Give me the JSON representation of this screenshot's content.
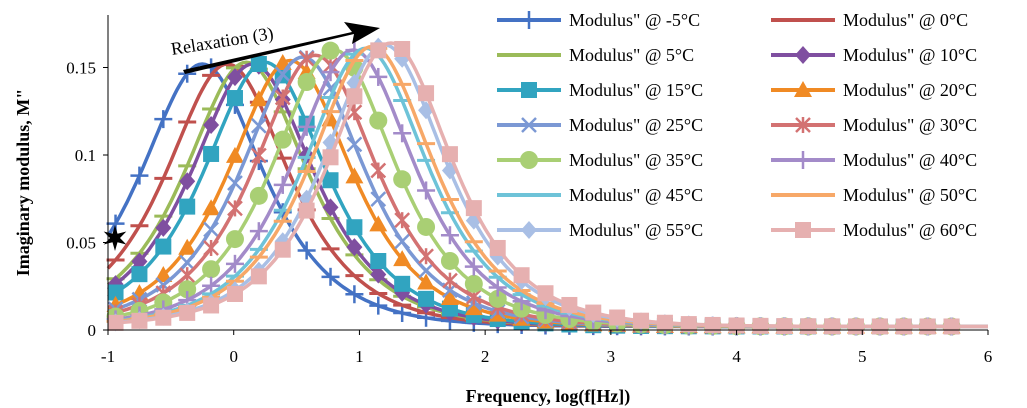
{
  "chart_data": {
    "type": "line",
    "title": "",
    "xlabel": "Frequency, log(f[Hz])",
    "ylabel": "Imaginary modulus, M\"",
    "xlim": [
      -1,
      6
    ],
    "ylim": [
      0,
      0.18
    ],
    "x_ticks": [
      "-1",
      "0",
      "1",
      "2",
      "3",
      "4",
      "5",
      "6"
    ],
    "y_ticks": [
      "0",
      "0.05",
      "0.1",
      "0.15"
    ],
    "grid": false,
    "legend_position": "right",
    "annotation": "Relaxation (3)",
    "series": [
      {
        "name": "Modulus\" @ -5°C",
        "color": "#4472C4",
        "marker": "plus",
        "peak_x": -0.25,
        "peak_y": 0.15
      },
      {
        "name": "Modulus\" @ 0°C",
        "color": "#C0504D",
        "marker": "dash",
        "peak_x": -0.05,
        "peak_y": 0.15
      },
      {
        "name": "Modulus\" @ 5°C",
        "color": "#9BBB59",
        "marker": "dash",
        "peak_x": 0.1,
        "peak_y": 0.151
      },
      {
        "name": "Modulus\" @ 10°C",
        "color": "#7F4FA0",
        "marker": "diamond",
        "peak_x": 0.15,
        "peak_y": 0.15
      },
      {
        "name": "Modulus\" @ 15°C",
        "color": "#31A4C0",
        "marker": "square",
        "peak_x": 0.25,
        "peak_y": 0.151
      },
      {
        "name": "Modulus\" @ 20°C",
        "color": "#F08A24",
        "marker": "triangle",
        "peak_x": 0.45,
        "peak_y": 0.152
      },
      {
        "name": "Modulus\" @ 25°C",
        "color": "#7B98D4",
        "marker": "x",
        "peak_x": 0.55,
        "peak_y": 0.154
      },
      {
        "name": "Modulus\" @ 30°C",
        "color": "#D37272",
        "marker": "star",
        "peak_x": 0.65,
        "peak_y": 0.155
      },
      {
        "name": "Modulus\" @ 35°C",
        "color": "#A9CF74",
        "marker": "circle",
        "peak_x": 0.8,
        "peak_y": 0.158
      },
      {
        "name": "Modulus\" @ 40°C",
        "color": "#A38BC9",
        "marker": "plus",
        "peak_x": 0.95,
        "peak_y": 0.158
      },
      {
        "name": "Modulus\" @ 45°C",
        "color": "#6EC3D8",
        "marker": "dash",
        "peak_x": 1.05,
        "peak_y": 0.159
      },
      {
        "name": "Modulus\" @ 50°C",
        "color": "#F7A868",
        "marker": "dash",
        "peak_x": 1.1,
        "peak_y": 0.16
      },
      {
        "name": "Modulus\" @ 55°C",
        "color": "#A9BFE5",
        "marker": "diamond",
        "peak_x": 1.2,
        "peak_y": 0.161
      },
      {
        "name": "Modulus\" @ 60°C",
        "color": "#E6B0B0",
        "marker": "square",
        "peak_x": 1.25,
        "peak_y": 0.162
      }
    ]
  }
}
